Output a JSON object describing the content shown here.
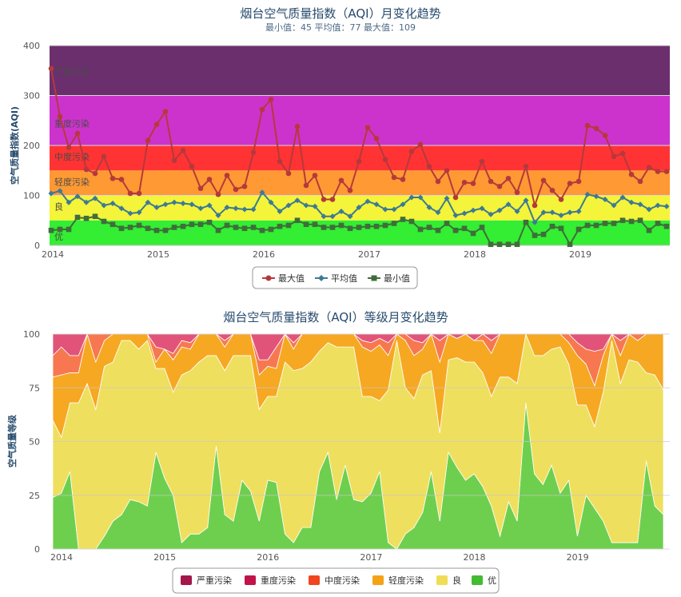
{
  "chart_data": [
    {
      "type": "line",
      "title": "烟台空气质量指数（AQI）月变化趋势",
      "subtitle": "最小值：45 平均值：77 最大值：109",
      "ylabel": "空气质量指数(AQI)",
      "ylim": [
        0,
        400
      ],
      "yticks": [
        "0",
        "100",
        "200",
        "300",
        "400"
      ],
      "xtick_labels": [
        "2014",
        "2015",
        "2016",
        "2017",
        "2018",
        "2019"
      ],
      "x_start": "2014-01",
      "x_end": "2019-10",
      "grid": true,
      "legend_position": "bottom",
      "bands": [
        {
          "label": "优",
          "from": 0,
          "to": 50,
          "color": "#33ee33"
        },
        {
          "label": "良",
          "from": 50,
          "to": 100,
          "color": "#f4f43a"
        },
        {
          "label": "轻度污染",
          "from": 100,
          "to": 150,
          "color": "#ff9933"
        },
        {
          "label": "中度污染",
          "from": 150,
          "to": 200,
          "color": "#ff3333"
        },
        {
          "label": "重度污染",
          "from": 200,
          "to": 300,
          "color": "#cc33cc"
        },
        {
          "label": "严重污染",
          "from": 300,
          "to": 400,
          "color": "#6c2f6e"
        }
      ],
      "series": [
        {
          "name": "最大值",
          "color": "#b5393c",
          "marker": "circle",
          "values": [
            354,
            258,
            196,
            224,
            152,
            144,
            178,
            134,
            132,
            104,
            104,
            210,
            242,
            268,
            170,
            190,
            158,
            114,
            132,
            102,
            140,
            112,
            118,
            186,
            272,
            292,
            168,
            144,
            238,
            120,
            140,
            92,
            92,
            130,
            110,
            168,
            236,
            214,
            172,
            136,
            132,
            188,
            202,
            158,
            128,
            150,
            96,
            126,
            124,
            168,
            128,
            118,
            134,
            106,
            158,
            80,
            130,
            110,
            92,
            124,
            128,
            240,
            234,
            220,
            178,
            184,
            142,
            128,
            156,
            148,
            148
          ]
        },
        {
          "name": "平均值",
          "color": "#3d7a94",
          "marker": "diamond",
          "values": [
            104,
            109,
            86,
            98,
            86,
            94,
            80,
            84,
            74,
            64,
            66,
            86,
            76,
            82,
            86,
            84,
            82,
            74,
            80,
            60,
            76,
            74,
            72,
            72,
            106,
            86,
            68,
            80,
            90,
            80,
            78,
            58,
            58,
            68,
            58,
            76,
            88,
            82,
            72,
            72,
            82,
            96,
            96,
            76,
            66,
            94,
            60,
            64,
            70,
            74,
            62,
            70,
            82,
            68,
            90,
            46,
            66,
            66,
            60,
            66,
            68,
            102,
            98,
            92,
            80,
            96,
            86,
            82,
            72,
            80,
            78
          ]
        },
        {
          "name": "最小值",
          "color": "#3f6e3a",
          "marker": "square",
          "values": [
            30,
            32,
            32,
            56,
            54,
            58,
            48,
            42,
            34,
            36,
            40,
            34,
            30,
            30,
            36,
            38,
            42,
            42,
            46,
            30,
            40,
            36,
            34,
            36,
            30,
            32,
            38,
            40,
            50,
            42,
            42,
            36,
            36,
            40,
            34,
            36,
            38,
            38,
            40,
            44,
            52,
            48,
            32,
            36,
            30,
            44,
            30,
            34,
            24,
            36,
            2,
            2,
            2,
            2,
            46,
            20,
            22,
            38,
            34,
            2,
            32,
            40,
            40,
            44,
            44,
            50,
            48,
            50,
            30,
            44,
            38
          ]
        }
      ]
    },
    {
      "type": "area",
      "stacked": true,
      "title": "烟台空气质量指数（AQI）等级月变化趋势",
      "ylabel": "空气质量等级",
      "ylim": [
        0,
        100
      ],
      "yticks": [
        "0",
        "25",
        "50",
        "75",
        "100"
      ],
      "xtick_labels": [
        "2014",
        "2015",
        "2016",
        "2017",
        "2018",
        "2019"
      ],
      "x_start": "2014-01",
      "x_end": "2019-10",
      "grid": true,
      "legend_position": "bottom",
      "series": [
        {
          "name": "优",
          "color": "#66cc44",
          "values": [
            24,
            26,
            36,
            0,
            0,
            0,
            6,
            13,
            16,
            23,
            22,
            20,
            45,
            33,
            25,
            3,
            7,
            7,
            10,
            48,
            16,
            13,
            32,
            27,
            13,
            32,
            31,
            7,
            3,
            10,
            10,
            36,
            45,
            23,
            39,
            23,
            22,
            26,
            36,
            3,
            0,
            7,
            10,
            17,
            36,
            13,
            45,
            38,
            32,
            35,
            29,
            20,
            6,
            22,
            13,
            68,
            35,
            30,
            39,
            26,
            32,
            6,
            25,
            19,
            13,
            3,
            3,
            3,
            3,
            41,
            20,
            16
          ]
        },
        {
          "name": "良",
          "color": "#eedd55",
          "values": [
            36,
            26,
            32,
            68,
            77,
            65,
            79,
            74,
            81,
            74,
            71,
            77,
            39,
            51,
            48,
            78,
            76,
            80,
            80,
            42,
            67,
            77,
            58,
            63,
            52,
            39,
            40,
            80,
            80,
            74,
            77,
            56,
            51,
            71,
            55,
            71,
            49,
            45,
            33,
            71,
            97,
            68,
            60,
            64,
            47,
            41,
            43,
            51,
            55,
            52,
            53,
            51,
            74,
            58,
            64,
            32,
            55,
            60,
            54,
            68,
            54,
            61,
            42,
            38,
            60,
            94,
            74,
            85,
            84,
            41,
            61,
            58
          ]
        },
        {
          "name": "轻度污染",
          "color": "#f5a316",
          "values": [
            20,
            29,
            14,
            14,
            23,
            22,
            12,
            13,
            3,
            3,
            7,
            3,
            3,
            9,
            15,
            13,
            10,
            13,
            10,
            10,
            11,
            10,
            10,
            10,
            16,
            14,
            13,
            13,
            10,
            16,
            13,
            8,
            4,
            6,
            6,
            6,
            23,
            21,
            26,
            16,
            3,
            22,
            20,
            12,
            17,
            33,
            12,
            9,
            13,
            10,
            15,
            20,
            20,
            20,
            23,
            0,
            10,
            10,
            7,
            6,
            10,
            23,
            19,
            19,
            17,
            3,
            13,
            12,
            10,
            19,
            19,
            26
          ]
        },
        {
          "name": "中度污染",
          "color": "#f77147",
          "values": [
            10,
            13,
            8,
            8,
            0,
            13,
            3,
            0,
            0,
            0,
            0,
            0,
            7,
            0,
            3,
            3,
            3,
            0,
            0,
            0,
            3,
            0,
            0,
            0,
            7,
            3,
            10,
            0,
            3,
            0,
            0,
            0,
            0,
            0,
            0,
            0,
            3,
            4,
            3,
            6,
            0,
            3,
            7,
            3,
            0,
            10,
            0,
            0,
            0,
            0,
            3,
            6,
            0,
            0,
            0,
            0,
            0,
            0,
            0,
            0,
            4,
            6,
            7,
            16,
            3,
            0,
            7,
            0,
            3,
            0,
            0,
            0
          ]
        },
        {
          "name": "重度污染",
          "color": "#e04a73",
          "values": [
            10,
            6,
            10,
            10,
            0,
            0,
            0,
            0,
            0,
            0,
            0,
            0,
            6,
            7,
            9,
            3,
            4,
            0,
            0,
            0,
            3,
            0,
            0,
            0,
            12,
            12,
            6,
            0,
            4,
            0,
            0,
            0,
            0,
            0,
            0,
            0,
            3,
            4,
            2,
            4,
            0,
            0,
            3,
            4,
            0,
            3,
            0,
            2,
            0,
            3,
            0,
            3,
            0,
            0,
            0,
            0,
            0,
            0,
            0,
            0,
            10,
            4,
            7,
            8,
            7,
            0,
            3,
            0,
            0,
            0,
            0,
            0
          ]
        },
        {
          "name": "严重污染",
          "color": "#a3174a",
          "values": [
            0,
            0,
            0,
            0,
            0,
            0,
            0,
            0,
            0,
            0,
            0,
            0,
            0,
            0,
            0,
            0,
            0,
            0,
            0,
            0,
            0,
            0,
            0,
            0,
            0,
            0,
            0,
            0,
            0,
            0,
            0,
            0,
            0,
            0,
            0,
            0,
            0,
            0,
            0,
            0,
            0,
            0,
            0,
            0,
            0,
            0,
            0,
            0,
            0,
            0,
            0,
            0,
            0,
            0,
            0,
            0,
            0,
            0,
            0,
            0,
            0,
            0,
            0,
            0,
            0,
            0,
            0,
            0,
            0,
            0,
            0,
            0
          ]
        }
      ],
      "legend_order": [
        "严重污染",
        "重度污染",
        "中度污染",
        "轻度污染",
        "良",
        "优"
      ],
      "legend_colors": [
        "#a3174a",
        "#c1134a",
        "#f0451f",
        "#f5a316",
        "#eedd55",
        "#44bb33"
      ]
    }
  ]
}
